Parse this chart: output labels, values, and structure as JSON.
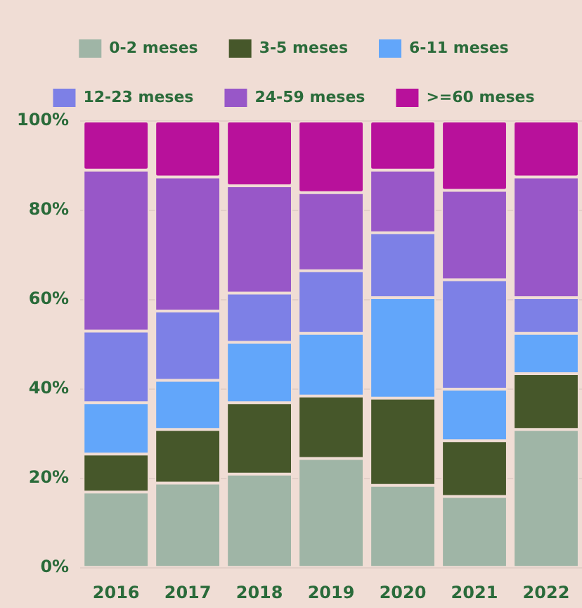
{
  "chart_data": {
    "type": "bar",
    "stacked": true,
    "categories": [
      "2016",
      "2017",
      "2018",
      "2019",
      "2020",
      "2021",
      "2022"
    ],
    "series": [
      {
        "name": "0-2 meses",
        "color": "#9fb5a6",
        "values": [
          17,
          19,
          21,
          24.5,
          18.5,
          16,
          31
        ]
      },
      {
        "name": "3-5 meses",
        "color": "#46572a",
        "values": [
          8.5,
          12,
          16,
          14,
          19.5,
          12.5,
          12.5
        ]
      },
      {
        "name": "6-11 meses",
        "color": "#62a6fa",
        "values": [
          11.5,
          11,
          13.5,
          14,
          22.5,
          11.5,
          9
        ]
      },
      {
        "name": "12-23 meses",
        "color": "#7d80e6",
        "values": [
          16,
          15.5,
          11,
          14,
          14.5,
          24.5,
          8
        ]
      },
      {
        "name": "24-59 meses",
        "color": "#9857c8",
        "values": [
          36,
          30,
          24,
          17.5,
          14,
          20,
          27
        ]
      },
      {
        "name": ">=60 meses",
        "color": "#b8119b",
        "values": [
          11,
          12.5,
          14.5,
          16,
          11,
          15.5,
          12.5
        ]
      }
    ],
    "ylim": [
      0,
      100
    ],
    "yticks": [
      {
        "value": 0,
        "label": "0%"
      },
      {
        "value": 20,
        "label": "20%"
      },
      {
        "value": 40,
        "label": "40%"
      },
      {
        "value": 60,
        "label": "60%"
      },
      {
        "value": 80,
        "label": "80%"
      },
      {
        "value": 100,
        "label": "100%"
      }
    ],
    "grid": "y",
    "legend": "top"
  }
}
